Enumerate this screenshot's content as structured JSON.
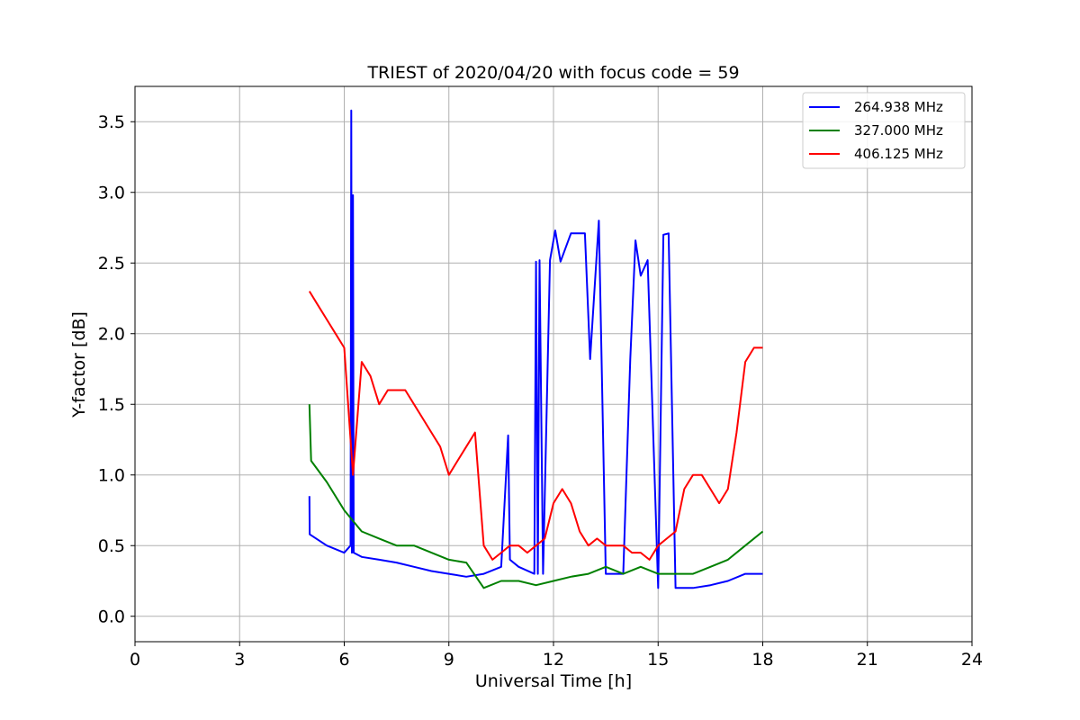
{
  "chart_data": {
    "type": "line",
    "title": "TRIEST of 2020/04/20 with focus code = 59",
    "xlabel": "Universal Time [h]",
    "ylabel": "Y-factor [dB]",
    "xlim": [
      0,
      24
    ],
    "ylim": [
      -0.18,
      3.75
    ],
    "xticks": [
      0,
      3,
      6,
      9,
      12,
      15,
      18,
      21,
      24
    ],
    "xtick_labels": [
      "0",
      "3",
      "6",
      "9",
      "12",
      "15",
      "18",
      "21",
      "24"
    ],
    "yticks": [
      0.0,
      0.5,
      1.0,
      1.5,
      2.0,
      2.5,
      3.0,
      3.5
    ],
    "ytick_labels": [
      "0.0",
      "0.5",
      "1.0",
      "1.5",
      "2.0",
      "2.5",
      "3.0",
      "3.5"
    ],
    "grid": true,
    "legend_position": "top-right",
    "series": [
      {
        "name": "264.938 MHz",
        "color": "#0000ff",
        "x": [
          5.0,
          5.01,
          5.5,
          6.0,
          6.18,
          6.2,
          6.22,
          6.25,
          6.27,
          6.5,
          7.0,
          7.5,
          8.0,
          8.5,
          9.0,
          9.5,
          10.0,
          10.5,
          10.7,
          10.75,
          11.0,
          11.45,
          11.5,
          11.55,
          11.6,
          11.7,
          11.9,
          12.05,
          12.2,
          12.5,
          12.9,
          13.05,
          13.3,
          13.5,
          14.0,
          14.2,
          14.35,
          14.5,
          14.7,
          15.0,
          15.15,
          15.3,
          15.5,
          16.0,
          16.5,
          17.0,
          17.5,
          18.0
        ],
        "values": [
          0.85,
          0.58,
          0.5,
          0.45,
          0.5,
          3.58,
          0.45,
          2.98,
          0.45,
          0.42,
          0.4,
          0.38,
          0.35,
          0.32,
          0.3,
          0.28,
          0.3,
          0.35,
          1.28,
          0.4,
          0.35,
          0.3,
          2.51,
          0.3,
          2.52,
          0.3,
          2.52,
          2.73,
          2.51,
          2.71,
          2.71,
          1.82,
          2.8,
          0.3,
          0.3,
          1.82,
          2.66,
          2.41,
          2.52,
          0.2,
          2.7,
          2.71,
          0.2,
          0.2,
          0.22,
          0.25,
          0.3,
          0.3
        ]
      },
      {
        "name": "327.000 MHz",
        "color": "#008000",
        "x": [
          5.0,
          5.05,
          5.5,
          6.0,
          6.5,
          7.0,
          7.5,
          8.0,
          8.5,
          9.0,
          9.5,
          10.0,
          10.5,
          11.0,
          11.5,
          12.0,
          12.5,
          13.0,
          13.5,
          14.0,
          14.5,
          15.0,
          15.5,
          16.0,
          16.5,
          17.0,
          17.5,
          18.0
        ],
        "values": [
          1.5,
          1.1,
          0.95,
          0.75,
          0.6,
          0.55,
          0.5,
          0.5,
          0.45,
          0.4,
          0.38,
          0.2,
          0.25,
          0.25,
          0.22,
          0.25,
          0.28,
          0.3,
          0.35,
          0.3,
          0.35,
          0.3,
          0.3,
          0.3,
          0.35,
          0.4,
          0.5,
          0.6
        ]
      },
      {
        "name": "406.125 MHz",
        "color": "#ff0000",
        "x": [
          5.0,
          5.25,
          5.5,
          5.75,
          6.0,
          6.25,
          6.5,
          6.75,
          7.0,
          7.25,
          7.5,
          7.75,
          8.0,
          8.25,
          8.5,
          8.75,
          9.0,
          9.25,
          9.5,
          9.75,
          10.0,
          10.25,
          10.5,
          10.75,
          11.0,
          11.25,
          11.5,
          11.75,
          12.0,
          12.25,
          12.5,
          12.75,
          13.0,
          13.25,
          13.5,
          13.75,
          14.0,
          14.25,
          14.5,
          14.75,
          15.0,
          15.25,
          15.5,
          15.75,
          16.0,
          16.25,
          16.5,
          16.75,
          17.0,
          17.25,
          17.5,
          17.75,
          18.0
        ],
        "values": [
          2.3,
          2.2,
          2.1,
          2.0,
          1.9,
          1.0,
          1.8,
          1.7,
          1.5,
          1.6,
          1.6,
          1.6,
          1.5,
          1.4,
          1.3,
          1.2,
          1.0,
          1.1,
          1.2,
          1.3,
          0.5,
          0.4,
          0.45,
          0.5,
          0.5,
          0.45,
          0.5,
          0.55,
          0.8,
          0.9,
          0.8,
          0.6,
          0.5,
          0.55,
          0.5,
          0.5,
          0.5,
          0.45,
          0.45,
          0.4,
          0.5,
          0.55,
          0.6,
          0.9,
          1.0,
          1.0,
          0.9,
          0.8,
          0.9,
          1.3,
          1.8,
          1.9,
          1.9
        ]
      }
    ]
  }
}
